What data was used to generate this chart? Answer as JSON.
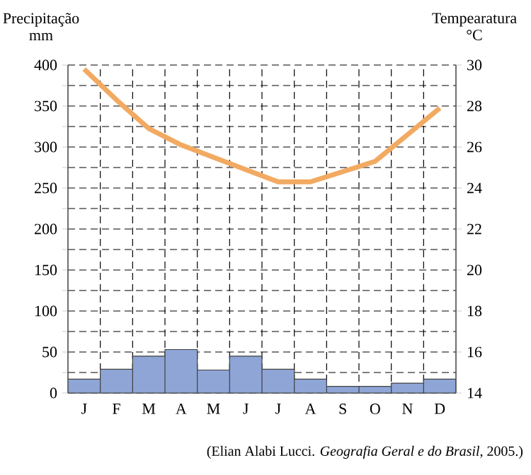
{
  "chart_data": {
    "type": "bar",
    "categories": [
      "J",
      "F",
      "M",
      "A",
      "M",
      "J",
      "J",
      "A",
      "S",
      "O",
      "N",
      "D"
    ],
    "series": [
      {
        "color": "#8ea5d6",
        "values": [
          17,
          29,
          45,
          53,
          28,
          45,
          29,
          17,
          8,
          8,
          12,
          17
        ]
      },
      {
        "type": "line",
        "axis": "y2",
        "color": "#f2aa62",
        "values": [
          29.8,
          28.3,
          26.9,
          26.1,
          25.5,
          24.9,
          24.3,
          24.3,
          24.8,
          25.3,
          26.6,
          27.9
        ]
      }
    ],
    "ylabel": "Precipitação mm",
    "y2label": "Tempearatura °C",
    "ylim": [
      0,
      400
    ],
    "yticks": [
      0,
      {
        "value": 25,
        "label": null
      },
      50,
      {
        "value": 75,
        "label": null
      },
      100,
      {
        "value": 125,
        "label": null
      },
      150,
      {
        "value": 175,
        "label": null
      },
      200,
      {
        "value": 225,
        "label": null
      },
      250,
      {
        "value": 275,
        "label": null
      },
      300,
      {
        "value": 325,
        "label": null
      },
      350,
      {
        "value": 375,
        "label": null
      },
      400
    ],
    "y2lim": [
      14,
      30
    ],
    "y2ticks": [
      14,
      16,
      18,
      20,
      22,
      24,
      26,
      28,
      30
    ],
    "grid": true,
    "marker": "none",
    "annotations": [
      "(Elian Alabi Lucci. *Geografia Geral e do Brasil*, 2005.)"
    ]
  }
}
